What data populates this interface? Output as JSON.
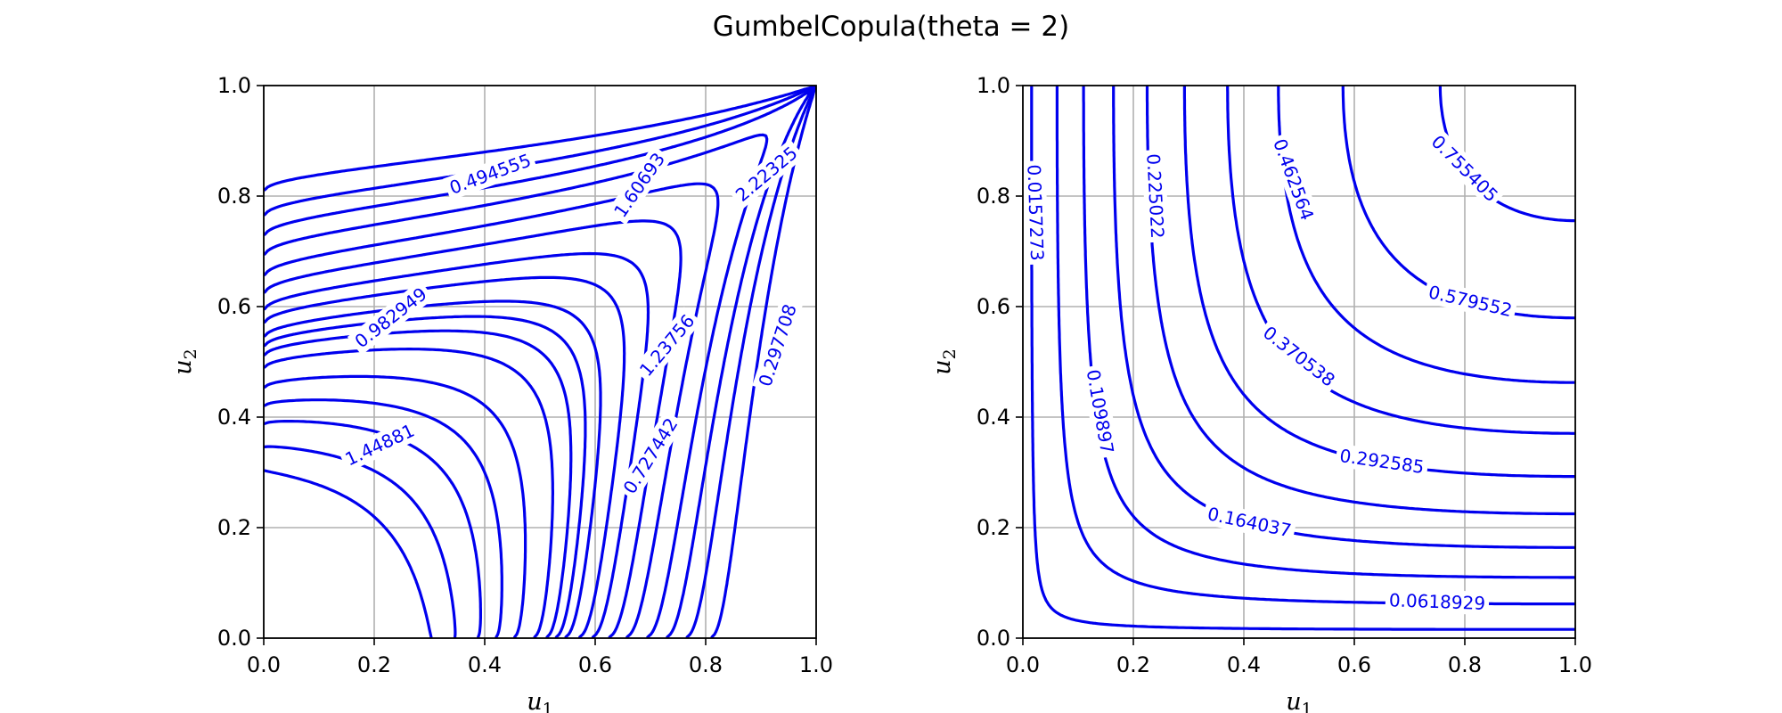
{
  "figure": {
    "suptitle": "GumbelCopula(theta = 2)"
  },
  "chart_data": [
    {
      "type": "contour",
      "id": "pdf",
      "xlabel": "u",
      "xlabel_sub": "1",
      "ylabel": "u",
      "ylabel_sub": "2",
      "xlim": [
        0,
        1
      ],
      "ylim": [
        0,
        1
      ],
      "xticks": [
        "0.0",
        "0.2",
        "0.4",
        "0.6",
        "0.8",
        "1.0"
      ],
      "yticks": [
        "0.0",
        "0.2",
        "0.4",
        "0.6",
        "0.8",
        "1.0"
      ],
      "grid": true,
      "line_color": "#0000ee",
      "levels": [
        {
          "label": "0.494555",
          "lx": 0.41,
          "ly": 0.84,
          "rot": -20
        },
        {
          "label": "0.982949",
          "lx": 0.23,
          "ly": 0.58,
          "rot": -38
        },
        {
          "label": "1.44881",
          "lx": 0.21,
          "ly": 0.35,
          "rot": -25
        },
        {
          "label": "1.60693",
          "lx": 0.68,
          "ly": 0.82,
          "rot": -55
        },
        {
          "label": "2.22325",
          "lx": 0.91,
          "ly": 0.84,
          "rot": -40
        },
        {
          "label": "1.23756",
          "lx": 0.73,
          "ly": 0.53,
          "rot": -50
        },
        {
          "label": "0.727442",
          "lx": 0.7,
          "ly": 0.33,
          "rot": -58
        },
        {
          "label": "0.297708",
          "lx": 0.93,
          "ly": 0.53,
          "rot": -72
        }
      ]
    },
    {
      "type": "contour",
      "id": "cdf",
      "xlabel": "u",
      "xlabel_sub": "1",
      "ylabel": "u",
      "ylabel_sub": "2",
      "xlim": [
        0,
        1
      ],
      "ylim": [
        0,
        1
      ],
      "xticks": [
        "0.0",
        "0.2",
        "0.4",
        "0.6",
        "0.8",
        "1.0"
      ],
      "yticks": [
        "0.0",
        "0.2",
        "0.4",
        "0.6",
        "0.8",
        "1.0"
      ],
      "grid": true,
      "line_color": "#0000ee",
      "levels": [
        {
          "value": 0.0157273,
          "label": "0.0157273",
          "lx": 0.023,
          "ly": 0.77,
          "rot": 88
        },
        {
          "value": 0.0618929,
          "label": "0.0618929",
          "lx": 0.75,
          "ly": 0.066,
          "rot": 2
        },
        {
          "value": 0.109897,
          "label": "0.109897",
          "lx": 0.14,
          "ly": 0.41,
          "rot": 80
        },
        {
          "value": 0.164037,
          "label": "0.164037",
          "lx": 0.41,
          "ly": 0.21,
          "rot": 12
        },
        {
          "value": 0.225022,
          "label": "0.225022",
          "lx": 0.24,
          "ly": 0.8,
          "rot": 87
        },
        {
          "value": 0.292585,
          "label": "0.292585",
          "lx": 0.65,
          "ly": 0.32,
          "rot": 8
        },
        {
          "value": 0.370538,
          "label": "0.370538",
          "lx": 0.5,
          "ly": 0.51,
          "rot": 38
        },
        {
          "value": 0.462564,
          "label": "0.462564",
          "lx": 0.49,
          "ly": 0.83,
          "rot": 70
        },
        {
          "value": 0.579552,
          "label": "0.579552",
          "lx": 0.81,
          "ly": 0.61,
          "rot": 13
        },
        {
          "value": 0.755405,
          "label": "0.755405",
          "lx": 0.8,
          "ly": 0.85,
          "rot": 45
        }
      ]
    }
  ]
}
